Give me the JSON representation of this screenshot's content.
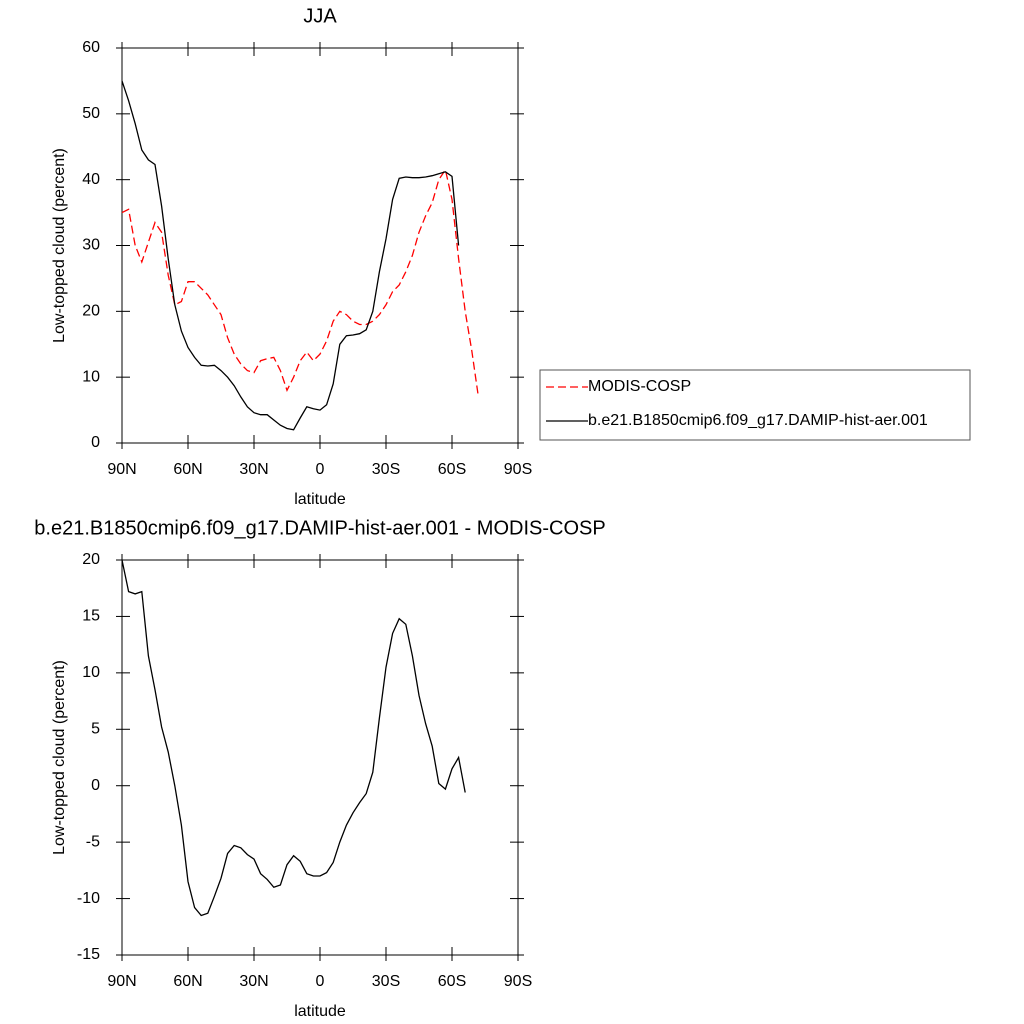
{
  "chart_data": [
    {
      "type": "line",
      "title": "JJA",
      "xlabel": "latitude",
      "ylabel": "Low-topped cloud (percent)",
      "x": [
        90,
        87,
        84,
        81,
        78,
        75,
        72,
        69,
        66,
        63,
        60,
        57,
        54,
        51,
        48,
        45,
        42,
        39,
        36,
        33,
        30,
        27,
        24,
        21,
        18,
        15,
        12,
        9,
        6,
        3,
        0,
        -3,
        -6,
        -9,
        -12,
        -15,
        -18,
        -21,
        -24,
        -27,
        -30,
        -33,
        -36,
        -39,
        -42,
        -45,
        -48,
        -51,
        -54,
        -57,
        -60,
        -63,
        -66,
        -69,
        -72
      ],
      "series": [
        {
          "name": "MODIS-COSP",
          "color": "#ff0000",
          "dash": true,
          "values": [
            35,
            35.5,
            30,
            27.5,
            30.5,
            33.5,
            32,
            25.5,
            21,
            21.5,
            24.5,
            24.5,
            23.5,
            22.5,
            21,
            19.5,
            16,
            13.5,
            12,
            11,
            10.7,
            12.5,
            12.8,
            13,
            11,
            8,
            10,
            12.5,
            13.8,
            12.5,
            13.5,
            15.5,
            18.5,
            20,
            19.5,
            18.5,
            18,
            18,
            18.5,
            19.5,
            21,
            23,
            24,
            26,
            28.5,
            32,
            34.5,
            36.5,
            40,
            41.5,
            37,
            28,
            20,
            14,
            7
          ]
        },
        {
          "name": "b.e21.B1850cmip6.f09_g17.DAMIP-hist-aer.001",
          "color": "#000000",
          "dash": false,
          "values": [
            55,
            52,
            48.5,
            44.5,
            43,
            42.3,
            36,
            28,
            21,
            17,
            14.5,
            13,
            11.8,
            11.7,
            11.8,
            11,
            10,
            8.7,
            7,
            5.5,
            4.6,
            4.3,
            4.3,
            3.5,
            2.7,
            2.2,
            2,
            3.8,
            5.5,
            5.2,
            5,
            5.8,
            9,
            15,
            16.3,
            16.4,
            16.6,
            17.2,
            20,
            26,
            31,
            37,
            40.2,
            40.4,
            40.3,
            40.3,
            40.4,
            40.6,
            40.9,
            41.2,
            40.5,
            30,
            null,
            null,
            null
          ]
        }
      ],
      "xlim": [
        90,
        -90
      ],
      "xticks": [
        {
          "value": 90,
          "label": "90N"
        },
        {
          "value": 60,
          "label": "60N"
        },
        {
          "value": 30,
          "label": "30N"
        },
        0,
        {
          "value": -30,
          "label": "30S"
        },
        {
          "value": -60,
          "label": "60S"
        },
        {
          "value": -90,
          "label": "90S"
        }
      ],
      "ylim": [
        0,
        60
      ],
      "yticks": [
        0,
        10,
        20,
        30,
        40,
        50,
        60
      ],
      "legend": "right"
    },
    {
      "type": "line",
      "title": "b.e21.B1850cmip6.f09_g17.DAMIP-hist-aer.001 - MODIS-COSP",
      "xlabel": "latitude",
      "ylabel": "Low-topped cloud (percent)",
      "x": [
        90,
        87,
        84,
        81,
        78,
        75,
        72,
        69,
        66,
        63,
        60,
        57,
        54,
        51,
        48,
        45,
        42,
        39,
        36,
        33,
        30,
        27,
        24,
        21,
        18,
        15,
        12,
        9,
        6,
        3,
        0,
        -3,
        -6,
        -9,
        -12,
        -15,
        -18,
        -21,
        -24,
        -27,
        -30,
        -33,
        -36,
        -39,
        -42,
        -45,
        -48,
        -51,
        -54,
        -57,
        -60,
        -63,
        -66,
        -69,
        -72
      ],
      "series": [
        {
          "color": "#000000",
          "dash": false,
          "values": [
            20,
            17.2,
            17,
            17.2,
            11.5,
            8.5,
            5.2,
            3,
            0,
            -3.5,
            -8.5,
            -10.8,
            -11.5,
            -11.3,
            -9.8,
            -8.2,
            -6,
            -5.3,
            -5.5,
            -6.1,
            -6.5,
            -7.8,
            -8.3,
            -9,
            -8.8,
            -7,
            -6.2,
            -6.7,
            -7.8,
            -8,
            -8,
            -7.7,
            -6.8,
            -5,
            -3.5,
            -2.4,
            -1.5,
            -0.7,
            1.2,
            6,
            10.5,
            13.5,
            14.8,
            14.3,
            11.5,
            8,
            5.5,
            3.5,
            0.2,
            -0.3,
            1.5,
            2.5,
            -0.6,
            null,
            null
          ]
        }
      ],
      "xlim": [
        90,
        -90
      ],
      "xticks": [
        {
          "value": 90,
          "label": "90N"
        },
        {
          "value": 60,
          "label": "60N"
        },
        {
          "value": 30,
          "label": "30N"
        },
        0,
        {
          "value": -30,
          "label": "30S"
        },
        {
          "value": -60,
          "label": "60S"
        },
        {
          "value": -90,
          "label": "90S"
        }
      ],
      "ylim": [
        -15,
        20
      ],
      "yticks": [
        -15,
        -10,
        -5,
        0,
        5,
        10,
        15,
        20
      ]
    }
  ]
}
